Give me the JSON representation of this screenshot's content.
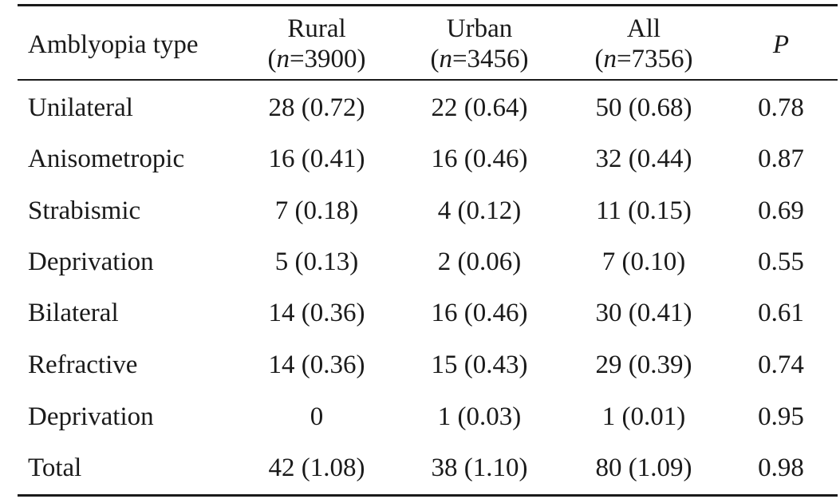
{
  "table": {
    "header": {
      "type_label": "Amblyopia type",
      "rural": {
        "name": "Rural",
        "n_prefix": "(",
        "n_var": "n",
        "n_value": "=3900)"
      },
      "urban": {
        "name": "Urban",
        "n_prefix": "(",
        "n_var": "n",
        "n_value": "=3456)"
      },
      "all": {
        "name": "All",
        "n_prefix": "(",
        "n_var": "n",
        "n_value": "=7356)"
      },
      "p_label": "P"
    },
    "rows": [
      {
        "type": "Unilateral",
        "rural": "28 (0.72)",
        "urban": "22 (0.64)",
        "all": "50 (0.68)",
        "p": "0.78"
      },
      {
        "type": "Anisometropic",
        "rural": "16 (0.41)",
        "urban": "16 (0.46)",
        "all": "32 (0.44)",
        "p": "0.87"
      },
      {
        "type": "Strabismic",
        "rural": "7 (0.18)",
        "urban": "4 (0.12)",
        "all": "11 (0.15)",
        "p": "0.69"
      },
      {
        "type": "Deprivation",
        "rural": "5 (0.13)",
        "urban": "2 (0.06)",
        "all": "7 (0.10)",
        "p": "0.55"
      },
      {
        "type": "Bilateral",
        "rural": "14 (0.36)",
        "urban": "16 (0.46)",
        "all": "30 (0.41)",
        "p": "0.61"
      },
      {
        "type": "Refractive",
        "rural": "14 (0.36)",
        "urban": "15 (0.43)",
        "all": "29 (0.39)",
        "p": "0.74"
      },
      {
        "type": "Deprivation",
        "rural": "0",
        "urban": "1 (0.03)",
        "all": "1 (0.01)",
        "p": "0.95"
      },
      {
        "type": "Total",
        "rural": "42 (1.08)",
        "urban": "38 (1.10)",
        "all": "80 (1.09)",
        "p": "0.98"
      }
    ]
  }
}
